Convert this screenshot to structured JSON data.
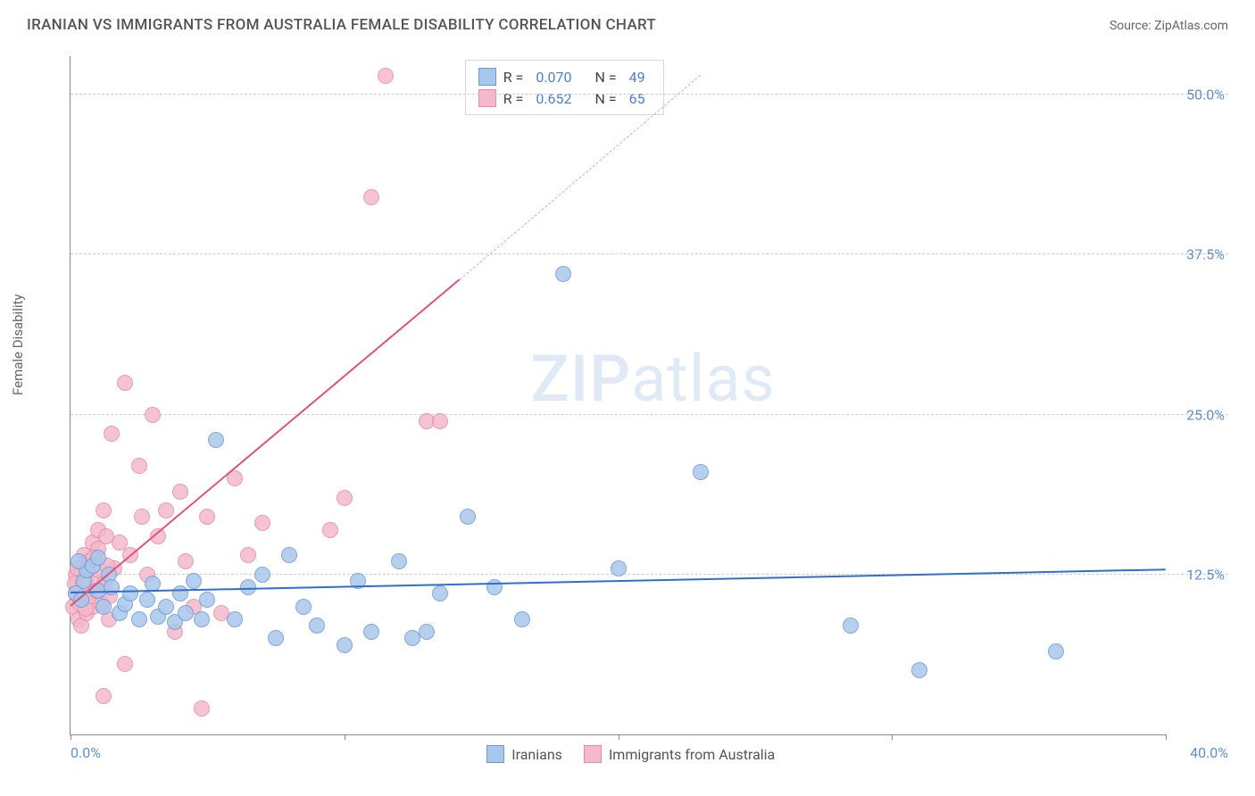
{
  "title": "IRANIAN VS IMMIGRANTS FROM AUSTRALIA FEMALE DISABILITY CORRELATION CHART",
  "source_label": "Source:",
  "source_name": "ZipAtlas.com",
  "y_axis_label": "Female Disability",
  "watermark": {
    "part1": "ZIP",
    "part2": "atlas"
  },
  "chart": {
    "type": "scatter",
    "xlim": [
      0,
      40
    ],
    "ylim": [
      0,
      53
    ],
    "x_ticks": [
      0,
      10,
      20,
      30,
      40
    ],
    "y_gridlines": [
      12.5,
      25.0,
      37.5,
      50.0
    ],
    "x_tick_labels": {
      "0": "0.0%",
      "40": "40.0%"
    },
    "y_tick_labels": [
      "12.5%",
      "25.0%",
      "37.5%",
      "50.0%"
    ],
    "background_color": "#ffffff",
    "grid_color": "#cccccc",
    "axis_color": "#888888",
    "tick_label_color": "#5b8fd6",
    "marker_radius": 9,
    "marker_border_width": 1.3,
    "marker_fill_opacity": 0.28
  },
  "series": {
    "iranians": {
      "label": "Iranians",
      "color_border": "#6a9bd8",
      "color_fill": "#a9c7ea",
      "R": "0.070",
      "N": "49",
      "trend": {
        "x1": 0,
        "y1": 11.0,
        "x2": 40,
        "y2": 12.8,
        "width": 2.5,
        "color": "#2f6fd0"
      },
      "points": [
        [
          0.2,
          11.0
        ],
        [
          0.4,
          10.5
        ],
        [
          0.5,
          12.0
        ],
        [
          0.6,
          12.8
        ],
        [
          0.8,
          13.2
        ],
        [
          1.0,
          11.2
        ],
        [
          1.2,
          10.0
        ],
        [
          1.4,
          12.5
        ],
        [
          1.5,
          11.5
        ],
        [
          1.8,
          9.5
        ],
        [
          2.0,
          10.2
        ],
        [
          2.2,
          11.0
        ],
        [
          2.5,
          9.0
        ],
        [
          2.8,
          10.5
        ],
        [
          3.0,
          11.8
        ],
        [
          3.2,
          9.2
        ],
        [
          3.5,
          10.0
        ],
        [
          3.8,
          8.8
        ],
        [
          4.0,
          11.0
        ],
        [
          4.2,
          9.5
        ],
        [
          4.5,
          12.0
        ],
        [
          4.8,
          9.0
        ],
        [
          5.0,
          10.5
        ],
        [
          5.3,
          23.0
        ],
        [
          6.0,
          9.0
        ],
        [
          6.5,
          11.5
        ],
        [
          7.0,
          12.5
        ],
        [
          7.5,
          7.5
        ],
        [
          8.0,
          14.0
        ],
        [
          8.5,
          10.0
        ],
        [
          9.0,
          8.5
        ],
        [
          10.0,
          7.0
        ],
        [
          10.5,
          12.0
        ],
        [
          11.0,
          8.0
        ],
        [
          12.0,
          13.5
        ],
        [
          12.5,
          7.5
        ],
        [
          13.0,
          8.0
        ],
        [
          13.5,
          11.0
        ],
        [
          14.5,
          17.0
        ],
        [
          15.5,
          11.5
        ],
        [
          16.5,
          9.0
        ],
        [
          18.0,
          36.0
        ],
        [
          20.0,
          13.0
        ],
        [
          23.0,
          20.5
        ],
        [
          28.5,
          8.5
        ],
        [
          31.0,
          5.0
        ],
        [
          36.0,
          6.5
        ],
        [
          1.0,
          13.8
        ],
        [
          0.3,
          13.5
        ]
      ]
    },
    "australia": {
      "label": "Immigrants from Australia",
      "color_border": "#e68ba5",
      "color_fill": "#f4b9ca",
      "R": "0.652",
      "N": "65",
      "trend_solid": {
        "x1": 0,
        "y1": 10.0,
        "x2": 14.2,
        "y2": 35.5,
        "width": 2.5,
        "color": "#e0527a"
      },
      "trend_dashed": {
        "x1": 14.2,
        "y1": 35.5,
        "x2": 23.0,
        "y2": 51.5,
        "width": 1.2,
        "color": "#f0a0b8"
      },
      "points": [
        [
          0.1,
          10.0
        ],
        [
          0.2,
          11.0
        ],
        [
          0.2,
          12.5
        ],
        [
          0.3,
          9.0
        ],
        [
          0.3,
          11.5
        ],
        [
          0.4,
          13.0
        ],
        [
          0.4,
          8.5
        ],
        [
          0.5,
          10.5
        ],
        [
          0.5,
          14.0
        ],
        [
          0.6,
          12.0
        ],
        [
          0.6,
          9.5
        ],
        [
          0.7,
          11.0
        ],
        [
          0.7,
          13.5
        ],
        [
          0.8,
          10.0
        ],
        [
          0.8,
          15.0
        ],
        [
          0.9,
          12.0
        ],
        [
          1.0,
          14.5
        ],
        [
          1.0,
          16.0
        ],
        [
          1.1,
          11.0
        ],
        [
          1.2,
          17.5
        ],
        [
          1.3,
          15.5
        ],
        [
          1.4,
          9.0
        ],
        [
          1.5,
          23.5
        ],
        [
          1.6,
          13.0
        ],
        [
          1.8,
          15.0
        ],
        [
          2.0,
          27.5
        ],
        [
          2.2,
          14.0
        ],
        [
          2.5,
          21.0
        ],
        [
          2.6,
          17.0
        ],
        [
          2.8,
          12.5
        ],
        [
          3.0,
          25.0
        ],
        [
          3.2,
          15.5
        ],
        [
          3.5,
          17.5
        ],
        [
          3.8,
          8.0
        ],
        [
          4.0,
          19.0
        ],
        [
          4.2,
          13.5
        ],
        [
          4.5,
          10.0
        ],
        [
          5.0,
          17.0
        ],
        [
          5.5,
          9.5
        ],
        [
          6.0,
          20.0
        ],
        [
          6.5,
          14.0
        ],
        [
          7.0,
          16.5
        ],
        [
          1.2,
          3.0
        ],
        [
          2.0,
          5.5
        ],
        [
          4.8,
          2.0
        ],
        [
          9.5,
          16.0
        ],
        [
          10.0,
          18.5
        ],
        [
          11.0,
          42.0
        ],
        [
          11.5,
          51.5
        ],
        [
          13.0,
          24.5
        ],
        [
          13.5,
          24.5
        ],
        [
          0.15,
          11.8
        ],
        [
          0.25,
          13.0
        ],
        [
          0.35,
          10.2
        ],
        [
          0.45,
          11.8
        ],
        [
          0.55,
          9.8
        ],
        [
          0.65,
          12.8
        ],
        [
          0.75,
          10.8
        ],
        [
          0.85,
          13.8
        ],
        [
          0.95,
          11.2
        ],
        [
          1.05,
          12.8
        ],
        [
          1.15,
          10.2
        ],
        [
          1.25,
          11.8
        ],
        [
          1.35,
          13.2
        ],
        [
          1.45,
          10.8
        ]
      ]
    }
  },
  "legend_top": {
    "r_label": "R =",
    "n_label": "N ="
  }
}
